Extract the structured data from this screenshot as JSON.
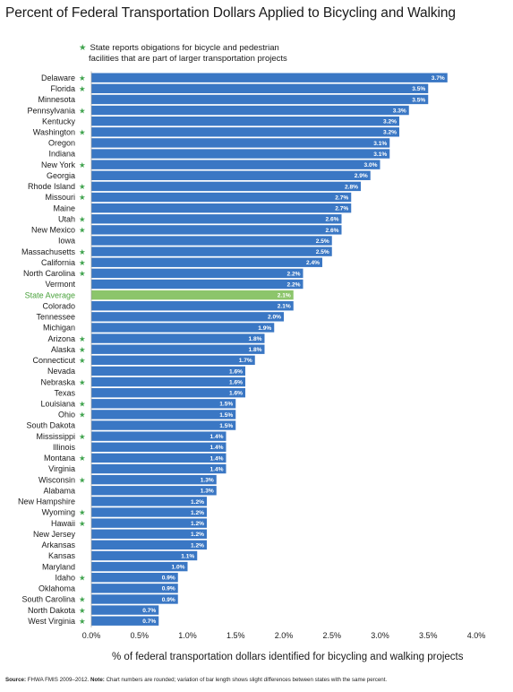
{
  "title": "Percent of Federal Transportation Dollars Applied to Bicycling and Walking",
  "legend_note": {
    "marker": "★",
    "line1": "State reports obigations for bicycle and pedestrian",
    "line2": "facilities that are part of larger transportation projects"
  },
  "colors": {
    "bar": "#3a77c4",
    "average_bar": "#8cc56b",
    "average_label": "#4aa23c",
    "star": "#3fa34d"
  },
  "chart_data": {
    "type": "bar",
    "orientation": "horizontal",
    "categories": [
      "Delaware",
      "Florida",
      "Minnesota",
      "Pennsylvania",
      "Kentucky",
      "Washington",
      "Oregon",
      "Indiana",
      "New York",
      "Georgia",
      "Rhode Island",
      "Missouri",
      "Maine",
      "Utah",
      "New Mexico",
      "Iowa",
      "Massachusetts",
      "California",
      "North Carolina",
      "Vermont",
      "State Average",
      "Colorado",
      "Tennessee",
      "Michigan",
      "Arizona",
      "Alaska",
      "Connecticut",
      "Nevada",
      "Nebraska",
      "Texas",
      "Louisiana",
      "Ohio",
      "South Dakota",
      "Mississippi",
      "Illinois",
      "Montana",
      "Virginia",
      "Wisconsin",
      "Alabama",
      "New Hampshire",
      "Wyoming",
      "Hawaii",
      "New Jersey",
      "Arkansas",
      "Kansas",
      "Maryland",
      "Idaho",
      "Oklahoma",
      "South Carolina",
      "North Dakota",
      "West Virginia"
    ],
    "values": [
      3.7,
      3.5,
      3.5,
      3.3,
      3.2,
      3.2,
      3.1,
      3.1,
      3.0,
      2.9,
      2.8,
      2.7,
      2.7,
      2.6,
      2.6,
      2.5,
      2.5,
      2.4,
      2.2,
      2.2,
      2.1,
      2.1,
      2.0,
      1.9,
      1.8,
      1.8,
      1.7,
      1.6,
      1.6,
      1.6,
      1.5,
      1.5,
      1.5,
      1.4,
      1.4,
      1.4,
      1.4,
      1.3,
      1.3,
      1.2,
      1.2,
      1.2,
      1.2,
      1.2,
      1.1,
      1.0,
      0.9,
      0.9,
      0.9,
      0.7,
      0.7
    ],
    "value_labels": [
      "3.7%",
      "3.5%",
      "3.5%",
      "3.3%",
      "3.2%",
      "3.2%",
      "3.1%",
      "3.1%",
      "3.0%",
      "2.9%",
      "2.8%",
      "2.7%",
      "2.7%",
      "2.6%",
      "2.6%",
      "2.5%",
      "2.5%",
      "2.4%",
      "2.2%",
      "2.2%",
      "2.1%",
      "2.1%",
      "2.0%",
      "1.9%",
      "1.8%",
      "1.8%",
      "1.7%",
      "1.6%",
      "1.6%",
      "1.6%",
      "1.5%",
      "1.5%",
      "1.5%",
      "1.4%",
      "1.4%",
      "1.4%",
      "1.4%",
      "1.3%",
      "1.3%",
      "1.2%",
      "1.2%",
      "1.2%",
      "1.2%",
      "1.2%",
      "1.1%",
      "1.0%",
      "0.9%",
      "0.9%",
      "0.9%",
      "0.7%",
      "0.7%"
    ],
    "starred": [
      true,
      true,
      false,
      true,
      false,
      true,
      false,
      false,
      true,
      false,
      true,
      true,
      false,
      true,
      true,
      false,
      true,
      true,
      true,
      false,
      false,
      false,
      false,
      false,
      true,
      true,
      true,
      false,
      true,
      false,
      true,
      true,
      false,
      true,
      false,
      true,
      false,
      true,
      false,
      false,
      true,
      true,
      false,
      false,
      false,
      false,
      true,
      false,
      true,
      true,
      true
    ],
    "highlight": "State Average",
    "xticks": [
      "0.0%",
      "0.5%",
      "1.0%",
      "1.5%",
      "2.0%",
      "2.5%",
      "3.0%",
      "3.5%",
      "4.0%"
    ],
    "xlim": [
      0,
      4.0
    ],
    "xlabel": "% of federal transportation dollars identified for bicycling and walking projects",
    "grid": false,
    "legend_placement": "top-left"
  },
  "source": {
    "source_label": "Source:",
    "source_text": " FHWA FMIS 2009–2012. ",
    "note_label": "Note:",
    "note_text": " Chart numbers are rounded; variation of bar length shows slight differences between states with the same percent."
  }
}
